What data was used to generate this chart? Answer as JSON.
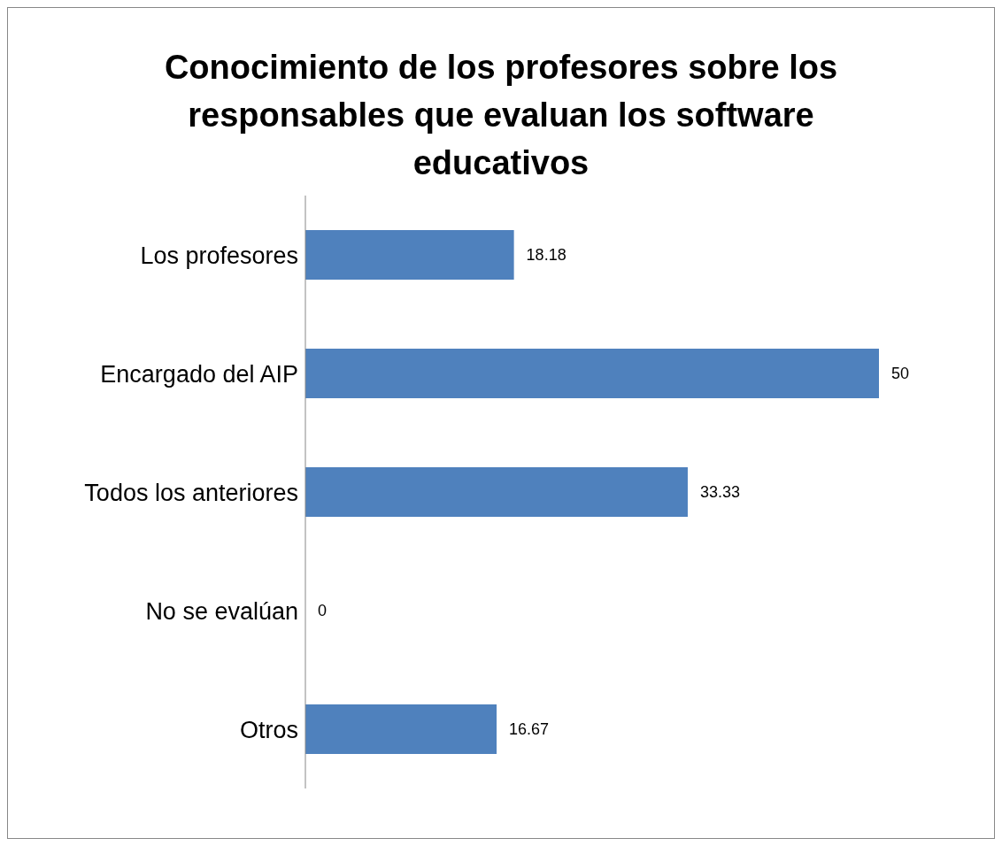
{
  "chart_data": {
    "type": "bar",
    "orientation": "horizontal",
    "title": "Conocimiento de los profesores sobre los responsables que evaluan los software educativos",
    "categories": [
      "Los profesores",
      "Encargado del AIP",
      "Todos los anteriores",
      "No se evalúan",
      "Otros"
    ],
    "values": [
      18.18,
      50,
      33.33,
      0,
      16.67
    ],
    "color": "#4f81bd",
    "data_labels": true,
    "grid": false,
    "legend": false
  }
}
